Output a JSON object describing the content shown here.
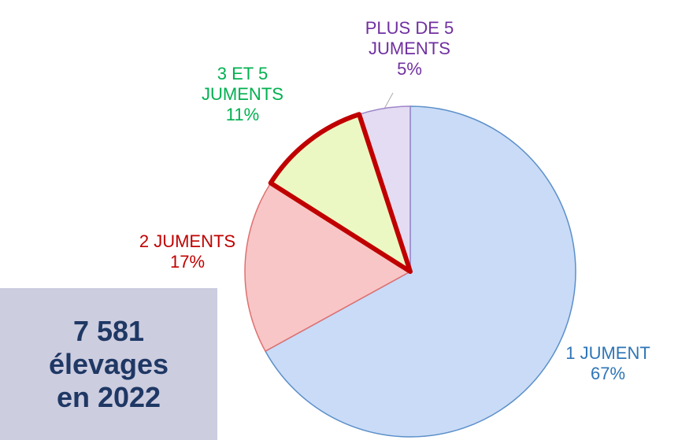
{
  "chart_data": {
    "type": "pie",
    "categories": [
      "1 JUMENT",
      "2 JUMENTS",
      "3 ET 5 JUMENTS",
      "PLUS DE 5 JUMENTS"
    ],
    "values": [
      67,
      17,
      11,
      5
    ],
    "value_labels": [
      "67%",
      "17%",
      "11%",
      "5%"
    ],
    "colors": [
      "#c9dbf6",
      "#f8c6c6",
      "#ecf8c4",
      "#e3dcf2"
    ],
    "label_colors": [
      "#2e75b6",
      "#c00000",
      "#00b050",
      "#7030a0"
    ],
    "highlight": 2,
    "highlight_color": "#c00000",
    "annotation": "7 581 élevages en 2022"
  }
}
